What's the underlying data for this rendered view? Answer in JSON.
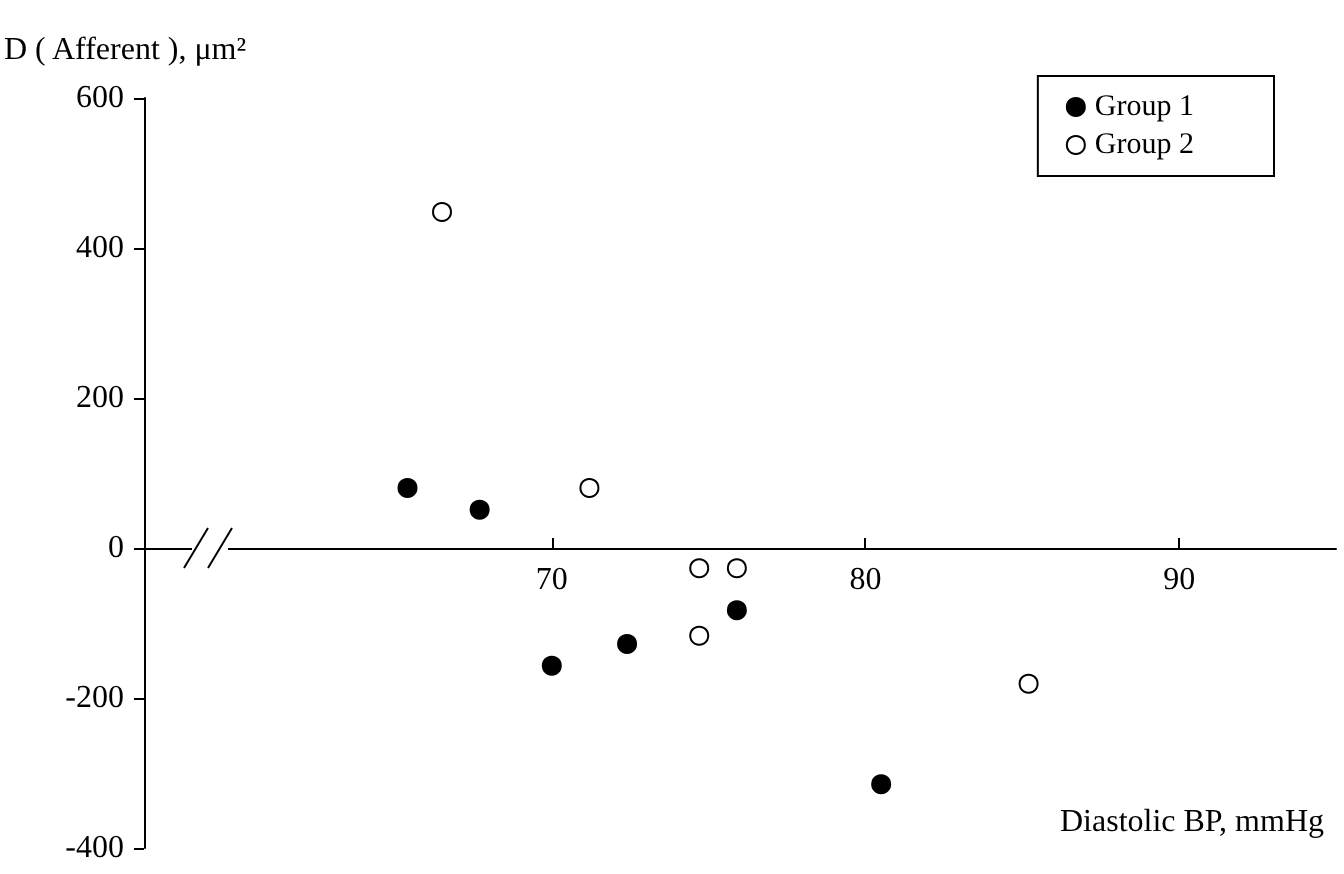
{
  "chart_data": {
    "type": "scatter",
    "ylabel": "D ( Afferent ), μm²",
    "xlabel": "Diastolic BP, mmHg",
    "xlim": [
      57,
      95
    ],
    "xticks": [
      70,
      80,
      90
    ],
    "ylim": [
      -400,
      600
    ],
    "yticks": [
      -400,
      -200,
      0,
      200,
      400,
      600
    ],
    "legend": "top right",
    "marker": "circle",
    "series": [
      {
        "name": "Group 1",
        "color": "#000000",
        "x": [
          65.4,
          67.7,
          70,
          72.4,
          75.9,
          80.5
        ],
        "values": [
          80,
          51,
          -157,
          -128,
          -83,
          -315
        ]
      },
      {
        "name": "Group 2",
        "color": "#ffffff",
        "x": [
          66.5,
          71.2,
          74.7,
          75.9,
          74.7,
          85.2
        ],
        "values": [
          448,
          80,
          -27,
          -27,
          -117,
          -181
        ]
      }
    ]
  }
}
